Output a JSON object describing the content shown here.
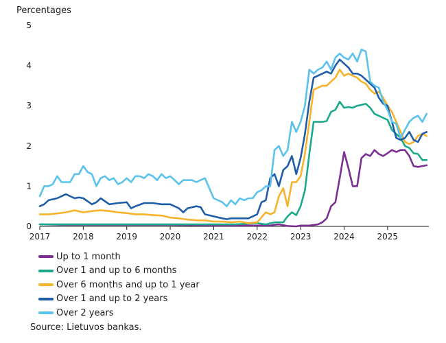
{
  "chart_data": {
    "type": "line",
    "ylabel": "Percentages",
    "ylim": [
      0,
      5
    ],
    "yticks": [
      "0",
      "1",
      "2",
      "3",
      "4",
      "5"
    ],
    "xlim": [
      2017.0,
      2025.95
    ],
    "xticks": [
      "2017",
      "2018",
      "2019",
      "2020",
      "2021",
      "2022",
      "2023",
      "2024",
      "2025"
    ],
    "grid": false,
    "legend_placement": "bottom",
    "source": "Source: Lietuvos bankas.",
    "series": [
      {
        "name": "Up to 1 month",
        "color": "#7a2f91",
        "x": [
          2017.0,
          2017.5,
          2018.0,
          2018.5,
          2019.0,
          2019.5,
          2020.0,
          2020.5,
          2021.0,
          2021.5,
          2022.0,
          2022.3,
          2022.4,
          2022.5,
          2022.7,
          2022.9,
          2023.0,
          2023.2,
          2023.4,
          2023.5,
          2023.6,
          2023.7,
          2023.8,
          2023.9,
          2024.0,
          2024.1,
          2024.2,
          2024.3,
          2024.4,
          2024.5,
          2024.6,
          2024.7,
          2024.8,
          2024.9,
          2025.0,
          2025.1,
          2025.2,
          2025.3,
          2025.4,
          2025.5,
          2025.6,
          2025.7,
          2025.8,
          2025.9
        ],
        "y": [
          0.05,
          0.04,
          0.04,
          0.04,
          0.04,
          0.04,
          0.04,
          0.03,
          0.02,
          0.02,
          0.02,
          0.02,
          0.04,
          0.05,
          0.01,
          0.0,
          0.02,
          0.02,
          0.05,
          0.1,
          0.2,
          0.5,
          0.6,
          1.2,
          1.85,
          1.45,
          1.0,
          1.0,
          1.7,
          1.8,
          1.75,
          1.9,
          1.8,
          1.75,
          1.82,
          1.9,
          1.85,
          1.9,
          1.9,
          1.75,
          1.5,
          1.48,
          1.5,
          1.52
        ]
      },
      {
        "name": "Over 1 and up to 6 months",
        "color": "#1aaa8b",
        "x": [
          2017.0,
          2017.5,
          2018.0,
          2018.5,
          2019.0,
          2019.5,
          2020.0,
          2020.5,
          2021.0,
          2021.5,
          2022.0,
          2022.2,
          2022.4,
          2022.6,
          2022.7,
          2022.8,
          2022.9,
          2023.0,
          2023.1,
          2023.2,
          2023.3,
          2023.4,
          2023.5,
          2023.6,
          2023.7,
          2023.8,
          2023.9,
          2024.0,
          2024.1,
          2024.2,
          2024.3,
          2024.4,
          2024.5,
          2024.6,
          2024.7,
          2024.8,
          2024.9,
          2025.0,
          2025.1,
          2025.2,
          2025.3,
          2025.4,
          2025.5,
          2025.6,
          2025.7,
          2025.8,
          2025.9
        ],
        "y": [
          0.05,
          0.05,
          0.05,
          0.05,
          0.05,
          0.05,
          0.05,
          0.05,
          0.05,
          0.05,
          0.08,
          0.05,
          0.1,
          0.1,
          0.25,
          0.35,
          0.28,
          0.5,
          0.9,
          1.8,
          2.6,
          2.6,
          2.6,
          2.62,
          2.85,
          2.9,
          3.1,
          2.95,
          2.97,
          2.95,
          3.0,
          3.02,
          3.05,
          2.95,
          2.8,
          2.75,
          2.7,
          2.65,
          2.4,
          2.3,
          2.2,
          2.0,
          1.95,
          1.82,
          1.8,
          1.65,
          1.65
        ]
      },
      {
        "name": "Over 6 months and up to 1 year",
        "color": "#f7b32b",
        "x": [
          2017.0,
          2017.2,
          2017.4,
          2017.6,
          2017.8,
          2018.0,
          2018.2,
          2018.4,
          2018.6,
          2018.8,
          2019.0,
          2019.2,
          2019.4,
          2019.6,
          2019.8,
          2020.0,
          2020.2,
          2020.4,
          2020.6,
          2020.8,
          2021.0,
          2021.2,
          2021.4,
          2021.6,
          2021.8,
          2022.0,
          2022.2,
          2022.3,
          2022.4,
          2022.5,
          2022.6,
          2022.7,
          2022.8,
          2022.9,
          2023.0,
          2023.1,
          2023.2,
          2023.3,
          2023.4,
          2023.5,
          2023.6,
          2023.7,
          2023.8,
          2023.9,
          2024.0,
          2024.1,
          2024.2,
          2024.3,
          2024.4,
          2024.5,
          2024.6,
          2024.7,
          2024.8,
          2024.9,
          2025.0,
          2025.1,
          2025.2,
          2025.3,
          2025.4,
          2025.5,
          2025.6,
          2025.7,
          2025.8,
          2025.9
        ],
        "y": [
          0.3,
          0.3,
          0.32,
          0.35,
          0.4,
          0.35,
          0.38,
          0.4,
          0.38,
          0.35,
          0.33,
          0.3,
          0.3,
          0.28,
          0.27,
          0.22,
          0.2,
          0.17,
          0.15,
          0.15,
          0.12,
          0.12,
          0.1,
          0.12,
          0.08,
          0.1,
          0.35,
          0.3,
          0.35,
          0.75,
          0.95,
          0.5,
          1.1,
          1.1,
          1.25,
          1.8,
          2.6,
          3.4,
          3.45,
          3.5,
          3.5,
          3.6,
          3.7,
          3.9,
          3.75,
          3.8,
          3.75,
          3.7,
          3.6,
          3.55,
          3.4,
          3.3,
          3.35,
          3.2,
          3.0,
          2.85,
          2.6,
          2.35,
          2.1,
          2.05,
          2.1,
          2.25,
          2.3,
          2.25
        ]
      },
      {
        "name": "Over 1 and up to 2 years",
        "color": "#1f5da8",
        "x": [
          2017.0,
          2017.1,
          2017.2,
          2017.4,
          2017.5,
          2017.6,
          2017.8,
          2017.9,
          2018.0,
          2018.2,
          2018.3,
          2018.4,
          2018.6,
          2018.8,
          2019.0,
          2019.1,
          2019.2,
          2019.4,
          2019.6,
          2019.8,
          2020.0,
          2020.1,
          2020.2,
          2020.3,
          2020.4,
          2020.6,
          2020.7,
          2020.8,
          2021.0,
          2021.2,
          2021.3,
          2021.4,
          2021.6,
          2021.8,
          2022.0,
          2022.1,
          2022.2,
          2022.3,
          2022.4,
          2022.5,
          2022.6,
          2022.7,
          2022.8,
          2022.9,
          2023.0,
          2023.1,
          2023.2,
          2023.3,
          2023.4,
          2023.5,
          2023.6,
          2023.7,
          2023.8,
          2023.9,
          2024.0,
          2024.1,
          2024.2,
          2024.3,
          2024.4,
          2024.5,
          2024.6,
          2024.7,
          2024.8,
          2024.9,
          2025.0,
          2025.1,
          2025.2,
          2025.3,
          2025.4,
          2025.5,
          2025.6,
          2025.7,
          2025.8,
          2025.9
        ],
        "y": [
          0.5,
          0.55,
          0.65,
          0.7,
          0.75,
          0.8,
          0.7,
          0.72,
          0.7,
          0.55,
          0.6,
          0.7,
          0.55,
          0.58,
          0.6,
          0.45,
          0.5,
          0.58,
          0.58,
          0.55,
          0.55,
          0.5,
          0.45,
          0.35,
          0.45,
          0.5,
          0.48,
          0.3,
          0.25,
          0.2,
          0.18,
          0.2,
          0.2,
          0.2,
          0.3,
          0.6,
          0.65,
          1.2,
          1.3,
          1.0,
          1.4,
          1.5,
          1.75,
          1.3,
          1.7,
          2.3,
          3.1,
          3.7,
          3.75,
          3.8,
          3.85,
          3.8,
          4.0,
          4.15,
          4.05,
          3.95,
          3.8,
          3.8,
          3.75,
          3.65,
          3.55,
          3.45,
          3.2,
          3.05,
          3.0,
          2.6,
          2.2,
          2.15,
          2.2,
          2.35,
          2.15,
          2.1,
          2.3,
          2.35
        ]
      },
      {
        "name": "Over 2 years",
        "color": "#5bc2ec",
        "x": [
          2017.0,
          2017.1,
          2017.2,
          2017.3,
          2017.4,
          2017.5,
          2017.6,
          2017.7,
          2017.8,
          2017.9,
          2018.0,
          2018.1,
          2018.2,
          2018.3,
          2018.4,
          2018.5,
          2018.6,
          2018.7,
          2018.8,
          2018.9,
          2019.0,
          2019.1,
          2019.2,
          2019.3,
          2019.4,
          2019.5,
          2019.6,
          2019.7,
          2019.8,
          2019.9,
          2020.0,
          2020.1,
          2020.2,
          2020.3,
          2020.4,
          2020.5,
          2020.6,
          2020.7,
          2020.8,
          2021.0,
          2021.2,
          2021.3,
          2021.4,
          2021.5,
          2021.6,
          2021.7,
          2021.8,
          2021.9,
          2022.0,
          2022.1,
          2022.2,
          2022.3,
          2022.4,
          2022.5,
          2022.6,
          2022.7,
          2022.8,
          2022.9,
          2023.0,
          2023.1,
          2023.2,
          2023.3,
          2023.4,
          2023.5,
          2023.6,
          2023.7,
          2023.8,
          2023.9,
          2024.0,
          2024.1,
          2024.2,
          2024.3,
          2024.4,
          2024.5,
          2024.6,
          2024.7,
          2024.8,
          2024.9,
          2025.0,
          2025.1,
          2025.2,
          2025.3,
          2025.4,
          2025.5,
          2025.6,
          2025.7,
          2025.8,
          2025.9
        ],
        "y": [
          0.75,
          1.0,
          1.0,
          1.05,
          1.25,
          1.1,
          1.1,
          1.1,
          1.3,
          1.3,
          1.5,
          1.35,
          1.3,
          1.0,
          1.2,
          1.25,
          1.15,
          1.2,
          1.05,
          1.1,
          1.2,
          1.1,
          1.25,
          1.25,
          1.2,
          1.3,
          1.25,
          1.15,
          1.3,
          1.2,
          1.25,
          1.15,
          1.05,
          1.15,
          1.15,
          1.15,
          1.1,
          1.15,
          1.2,
          0.7,
          0.6,
          0.5,
          0.65,
          0.55,
          0.7,
          0.65,
          0.7,
          0.7,
          0.85,
          0.9,
          1.0,
          1.0,
          1.9,
          2.0,
          1.75,
          1.9,
          2.6,
          2.35,
          2.6,
          3.0,
          3.9,
          3.8,
          3.9,
          3.95,
          4.1,
          3.9,
          4.2,
          4.3,
          4.2,
          4.15,
          4.3,
          4.1,
          4.4,
          4.35,
          3.6,
          3.5,
          3.45,
          3.1,
          2.9,
          2.6,
          2.55,
          2.2,
          2.4,
          2.6,
          2.7,
          2.75,
          2.6,
          2.8
        ]
      }
    ]
  }
}
